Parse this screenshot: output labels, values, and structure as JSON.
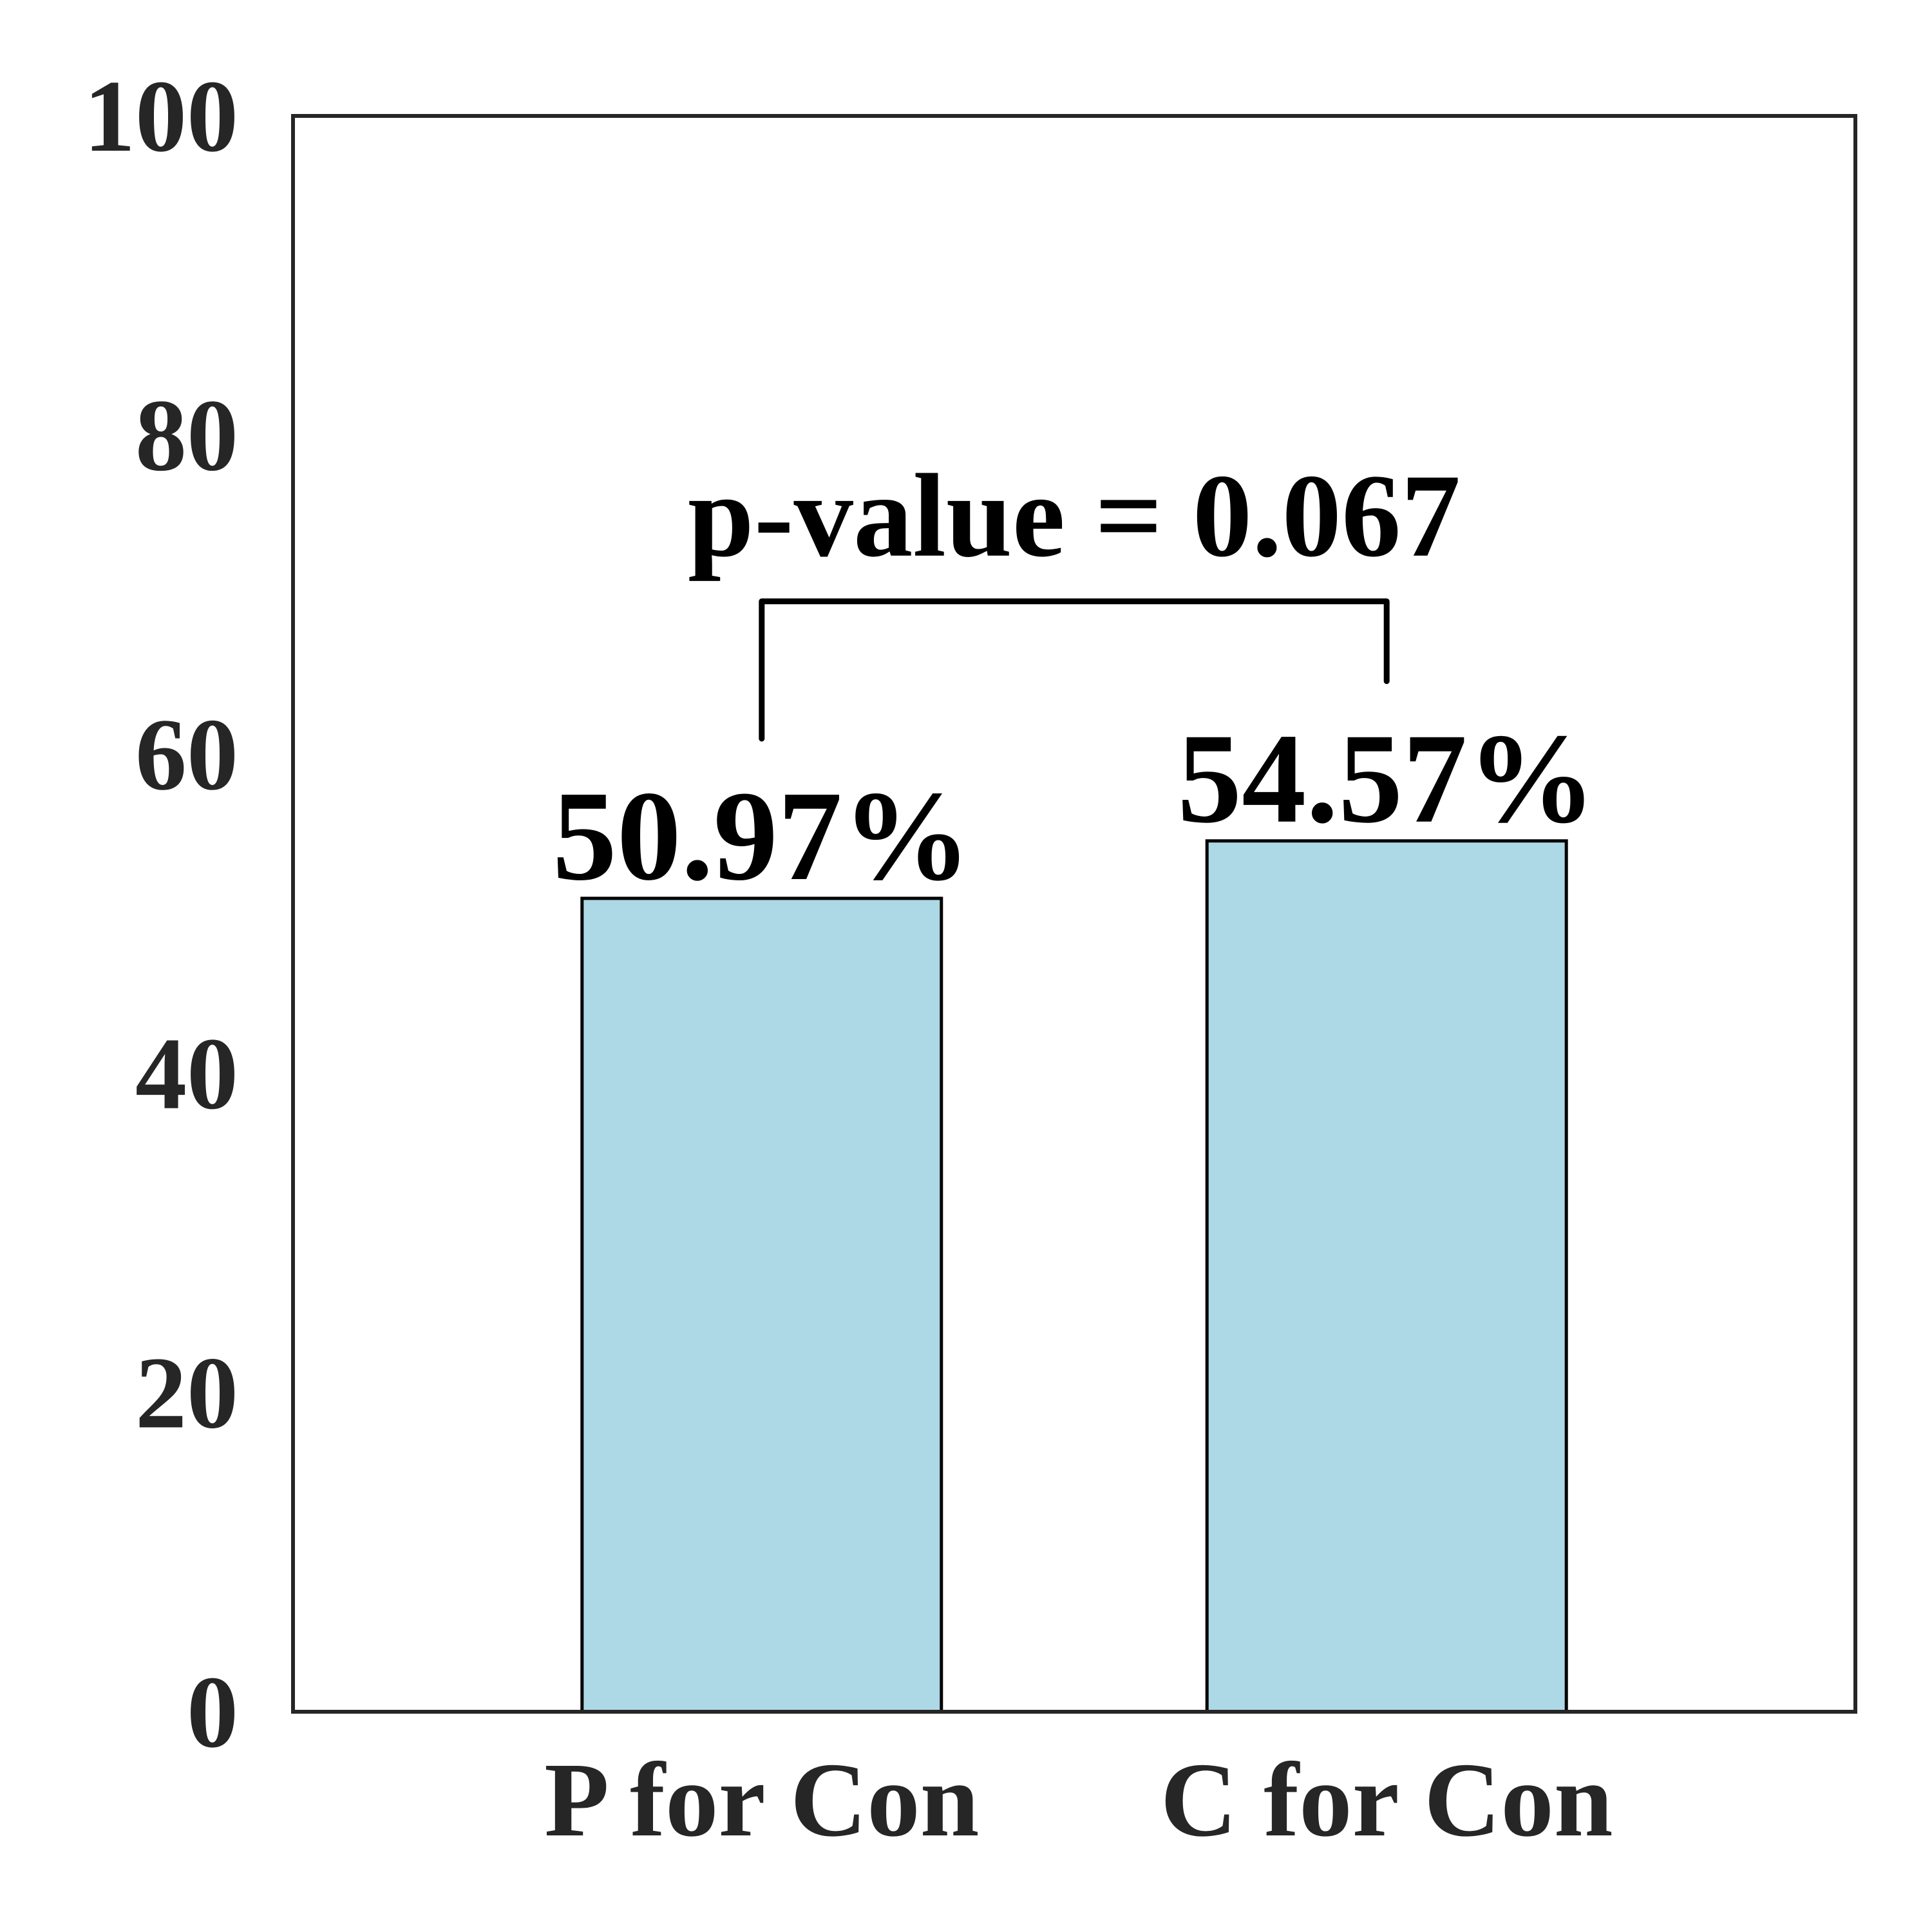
{
  "chart_data": {
    "type": "bar",
    "categories": [
      "P for Con",
      "C for Con"
    ],
    "values": [
      50.97,
      54.57
    ],
    "value_labels": [
      "50.97%",
      "54.57%"
    ],
    "color": "#add8e6",
    "annotation": "p-value = 0.067",
    "ylim": [
      0,
      100
    ],
    "yticks": [
      0,
      20,
      40,
      60,
      80,
      100
    ],
    "grid": false
  }
}
